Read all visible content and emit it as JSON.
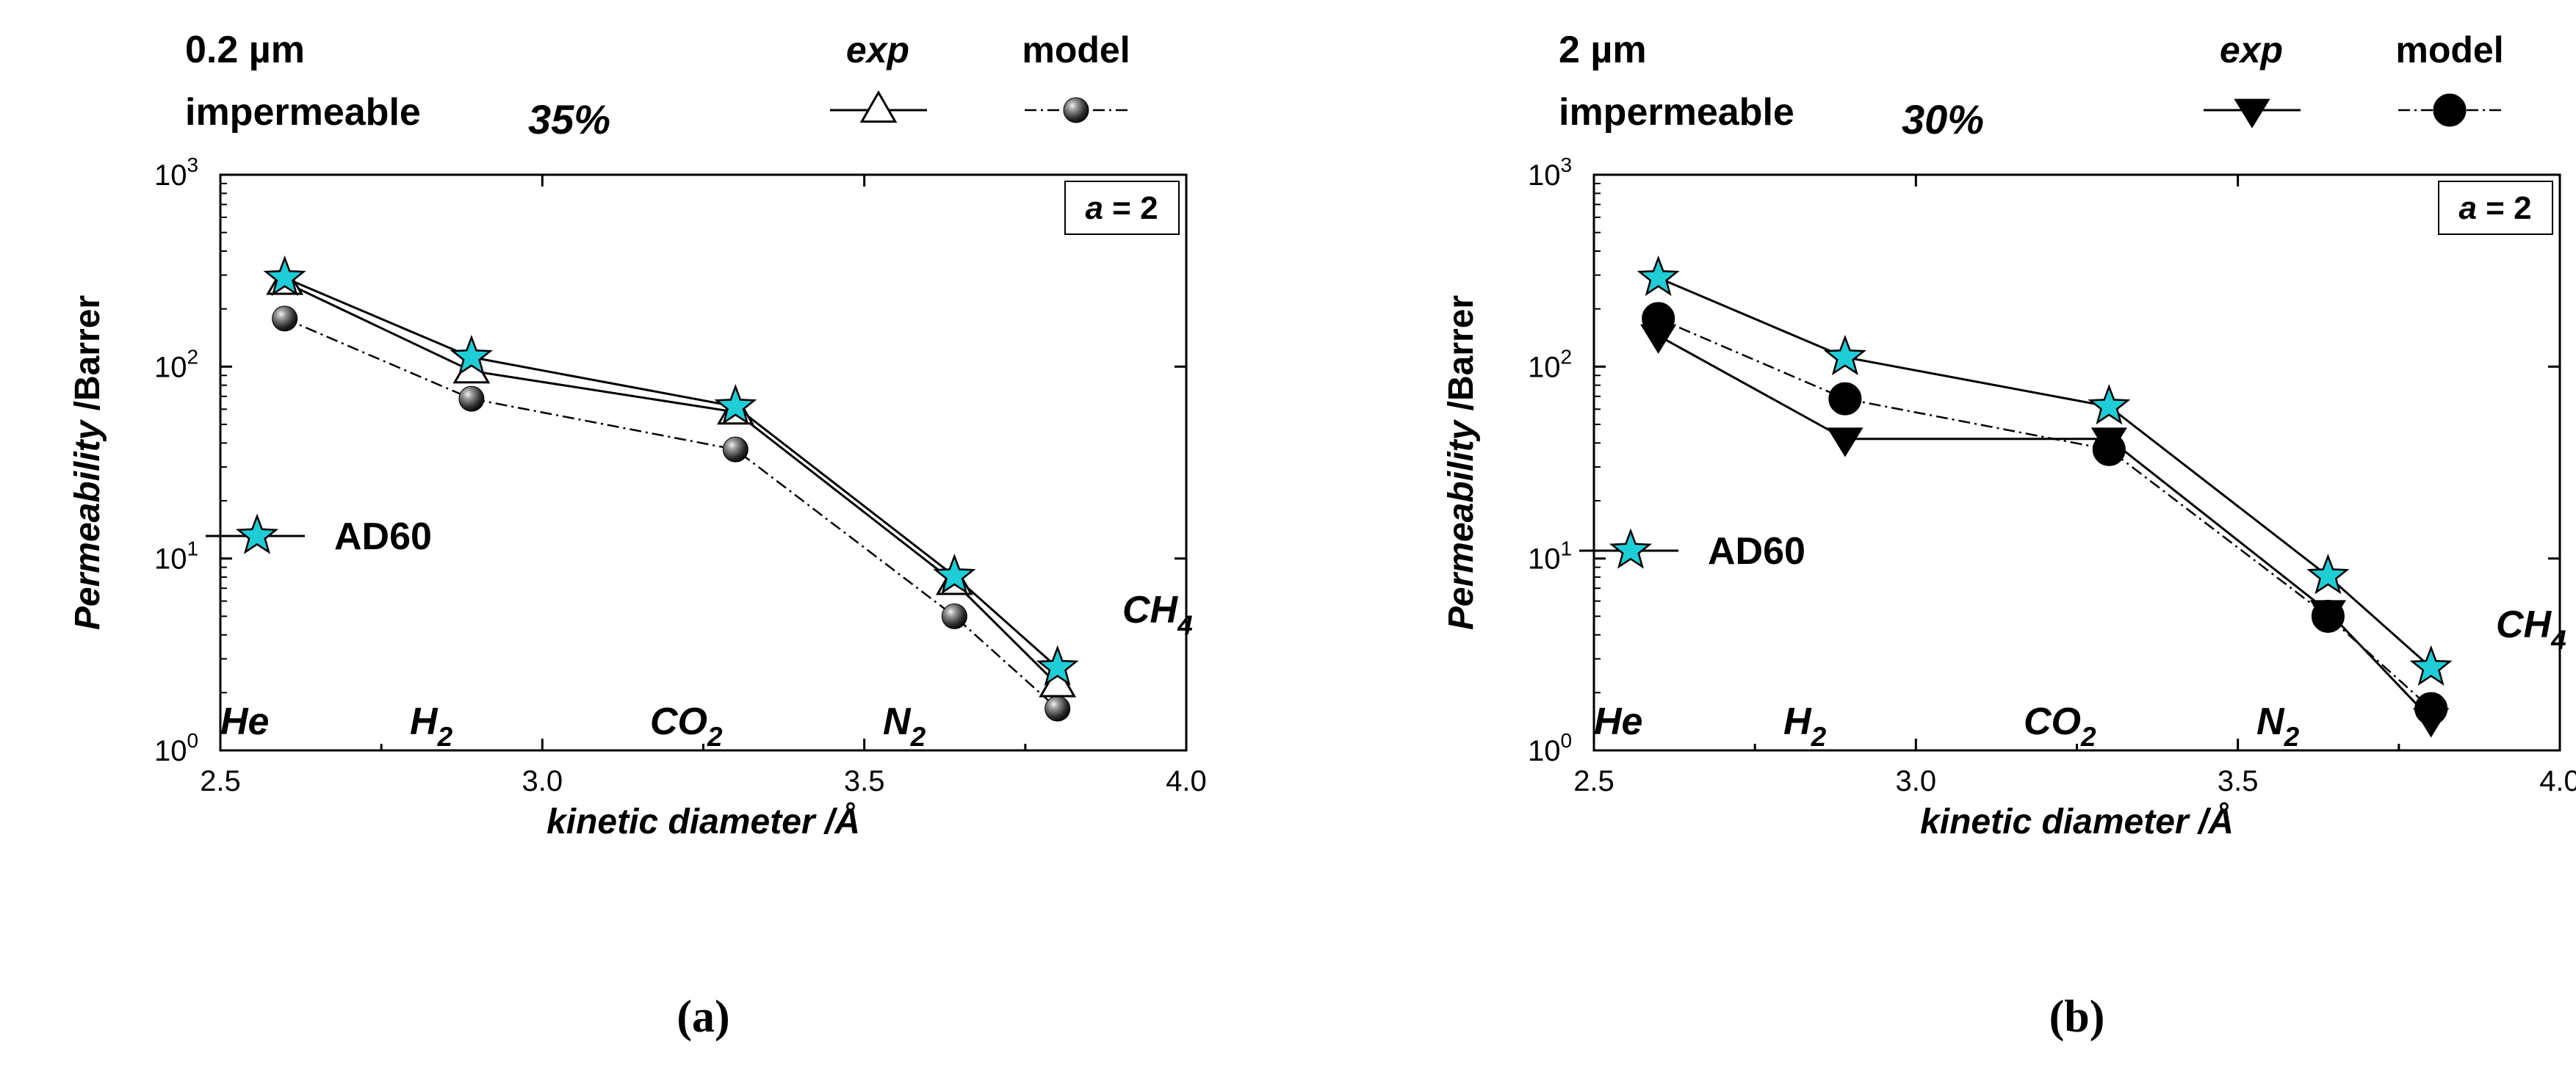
{
  "chart_data": [
    {
      "type": "line",
      "panel_label": "(a)",
      "header": {
        "thickness": "0.2 µm",
        "note": "impermeable",
        "percent": "35%"
      },
      "legend": {
        "exp_label": "exp",
        "model_label": "model",
        "series_label": "AD60",
        "param_label": "a = 2"
      },
      "xlabel": "kinetic diameter /Å",
      "ylabel": "Permeability /Barrer",
      "xlim": [
        2.5,
        4.0
      ],
      "ylim": [
        1,
        1000
      ],
      "yscale": "log",
      "xticks": [
        "2.5",
        "3.0",
        "3.5",
        "4.0"
      ],
      "yticks": [
        {
          "base": "10",
          "exp": "0"
        },
        {
          "base": "10",
          "exp": "1"
        },
        {
          "base": "10",
          "exp": "2"
        },
        {
          "base": "10",
          "exp": "3"
        }
      ],
      "gases": [
        {
          "name": "He",
          "sub": ""
        },
        {
          "name": "H",
          "sub": "2"
        },
        {
          "name": "CO",
          "sub": "2"
        },
        {
          "name": "N",
          "sub": "2"
        },
        {
          "name": "CH",
          "sub": "4"
        }
      ],
      "x": [
        2.6,
        2.89,
        3.3,
        3.64,
        3.8
      ],
      "series": [
        {
          "name": "AD60",
          "values": [
            290,
            112,
            62,
            8.1,
            2.7
          ],
          "color": "#1ecdd6"
        },
        {
          "name": "exp",
          "values": [
            275,
            95,
            58,
            7.5,
            2.2
          ]
        },
        {
          "name": "model",
          "values": [
            178,
            68,
            37,
            5.0,
            1.65
          ]
        }
      ]
    },
    {
      "type": "line",
      "panel_label": "(b)",
      "header": {
        "thickness": "2 µm",
        "note": "impermeable",
        "percent": "30%"
      },
      "legend": {
        "exp_label": "exp",
        "model_label": "model",
        "series_label": "AD60",
        "param_label": "a = 2"
      },
      "xlabel": "kinetic diameter /Å",
      "ylabel": "Permeability /Barrer",
      "xlim": [
        2.5,
        4.0
      ],
      "ylim": [
        1,
        1000
      ],
      "yscale": "log",
      "xticks": [
        "2.5",
        "3.0",
        "3.5",
        "4.0"
      ],
      "yticks": [
        {
          "base": "10",
          "exp": "0"
        },
        {
          "base": "10",
          "exp": "1"
        },
        {
          "base": "10",
          "exp": "2"
        },
        {
          "base": "10",
          "exp": "3"
        }
      ],
      "gases": [
        {
          "name": "He",
          "sub": ""
        },
        {
          "name": "H",
          "sub": "2"
        },
        {
          "name": "CO",
          "sub": "2"
        },
        {
          "name": "N",
          "sub": "2"
        },
        {
          "name": "CH",
          "sub": "4"
        }
      ],
      "x": [
        2.6,
        2.89,
        3.3,
        3.64,
        3.8
      ],
      "series": [
        {
          "name": "AD60",
          "values": [
            290,
            112,
            62,
            8.1,
            2.7
          ],
          "color": "#1ecdd6"
        },
        {
          "name": "exp",
          "values": [
            145,
            42,
            42,
            5.3,
            1.45
          ]
        },
        {
          "name": "model",
          "values": [
            178,
            68,
            37,
            5.0,
            1.65
          ]
        }
      ]
    }
  ]
}
